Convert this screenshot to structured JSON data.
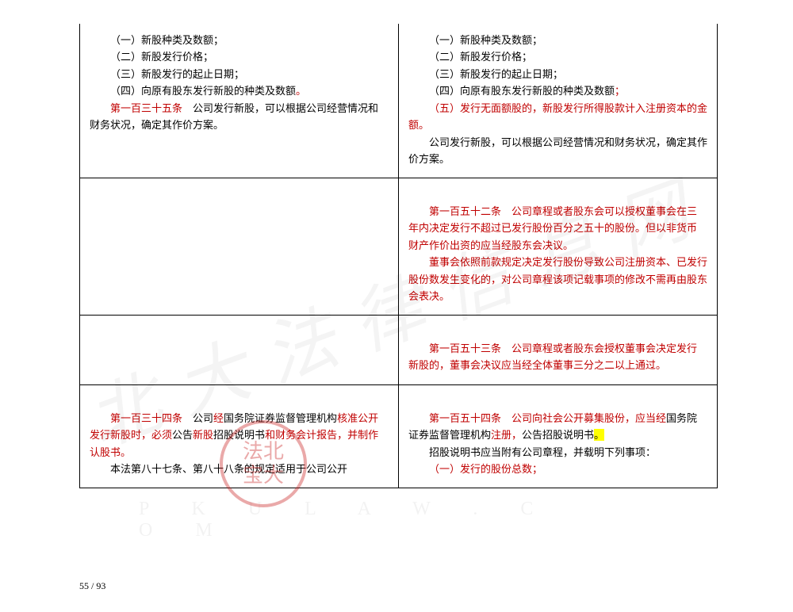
{
  "colors": {
    "red": "#c00000",
    "highlight": "#ffff00",
    "text": "#000000"
  },
  "watermark": "北大法律信息网",
  "watermark2": "P K U L A W . C O M",
  "seal": {
    "line1": "法北",
    "line2": "宝大"
  },
  "row1": {
    "left": {
      "l1": "（一）新股种类及数额；",
      "l2": "（二）新股发行价格；",
      "l3": "（三）新股发行的起止日期；",
      "l4a": "（四）向原有股东发行新股的种类及数额",
      "l4dot": "。",
      "art_no": "第一百三十五条",
      "art_txt": "　公司发行新股，可以根据公司经营情况和财务状况，确定其作价方案。"
    },
    "right": {
      "l1": "（一）新股种类及数额；",
      "l2": "（二）新股发行价格；",
      "l3": "（三）新股发行的起止日期；",
      "l4a": "（四）向原有股东发行新股的种类及数额",
      "l4semi": "；",
      "l5": "（五）发行无面额股的，新股发行所得股款计入注册资本的金额。",
      "tail": "公司发行新股，可以根据公司经营情况和财务状况，确定其作价方案。"
    }
  },
  "row2": {
    "right": {
      "art_no": "第一百五十二条",
      "p1a": "　公司章程或者股东会可以授权董事会在三年内决定发行不超过已发行股份百分之五十的股份。",
      "p1b": "但以非货币财产作价出资的应当经股东会决议",
      "p1c": "。",
      "p2": "董事会依照前款规定决定发行股份导致公司注册资本、已发行股份数发生变化的，对公司章程该项记载事项的修改不需再由股东会表决。"
    }
  },
  "row3": {
    "right": {
      "art_no": "第一百五十三条",
      "txt": "　公司章程或者股东会授权董事会决定发行新股的，董事会决议应当经全体董事三分之二以上通过。"
    }
  },
  "row4": {
    "left": {
      "art_no": "第一百三十四条",
      "t1": "　公司",
      "r1": "经",
      "t2": "国务院证券监督管理机构",
      "r2": "核准公开发行新股时，必须",
      "t3": "公告",
      "r3": "新股",
      "t4": "招股说明书",
      "r4": "和财务会计报告，并制作认股书。",
      "p2a": "本法第八十七条、第八十八条的规定适用于公司公开"
    },
    "right": {
      "art_no": "第一百五十四条",
      "r1": "　公司向社会公开募集股份，应当经",
      "t1": "国务院证券监督管理机构",
      "r2": "注册，",
      "t2": "公告招股说明书",
      "hl": "。",
      "p2": "招股说明书应当附有公司章程，并载明下列事项：",
      "p3": "（一）发行的股份总数；"
    }
  },
  "page": "55 / 93"
}
